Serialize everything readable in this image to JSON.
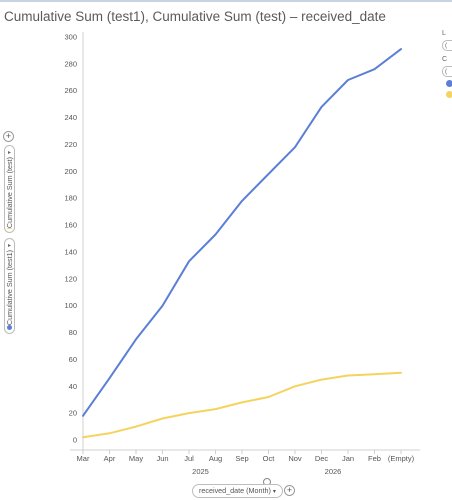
{
  "title": "Cumulative Sum (test1), Cumulative Sum (test) – received_date",
  "y_axis_pills": [
    {
      "label": "Cumulative Sum (test)",
      "color": "#f4d35e"
    },
    {
      "label": "Cumulative Sum (test1)",
      "color": "#5b7fd6"
    }
  ],
  "x_axis_pill": "received_date (Month)",
  "legend_panel": {
    "items": [
      {
        "label": "L",
        "value": "("
      },
      {
        "label": "C",
        "value": "("
      }
    ],
    "colors": [
      "#5b7fd6",
      "#f4d35e"
    ]
  },
  "chart_data": {
    "type": "line",
    "categories": [
      "Mar",
      "Apr",
      "May",
      "Jun",
      "Jul",
      "Aug",
      "Sep",
      "Oct",
      "Nov",
      "Dec",
      "Jan",
      "Feb",
      "(Empty)"
    ],
    "year_labels": [
      {
        "label": "2025",
        "category": "Aug"
      },
      {
        "label": "2026",
        "category": "Jan"
      }
    ],
    "series": [
      {
        "name": "Cumulative Sum (test1)",
        "color": "#5b7fd6",
        "values": [
          18,
          46,
          75,
          100,
          133,
          153,
          178,
          198,
          218,
          248,
          268,
          276,
          291
        ]
      },
      {
        "name": "Cumulative Sum (test)",
        "color": "#f4d35e",
        "values": [
          2,
          5,
          10,
          16,
          20,
          23,
          28,
          32,
          40,
          45,
          48,
          49,
          50
        ]
      }
    ],
    "ylim": [
      0,
      300
    ],
    "yticks": [
      0,
      20,
      40,
      60,
      80,
      100,
      120,
      140,
      160,
      180,
      200,
      220,
      240,
      260,
      280,
      300
    ],
    "grid": false
  }
}
